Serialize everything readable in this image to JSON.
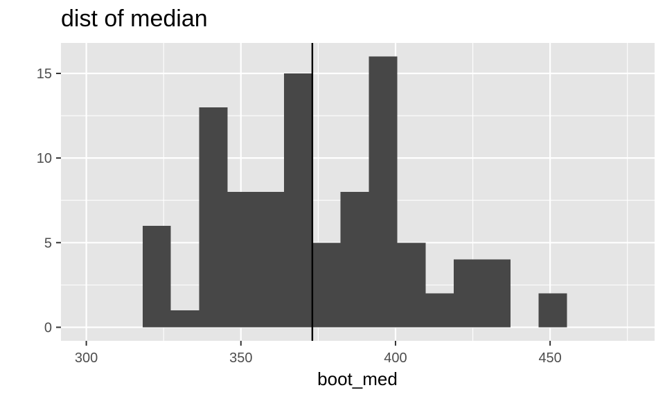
{
  "chart_data": {
    "type": "bar",
    "title": "dist of median",
    "xlabel": "boot_med",
    "ylabel": "",
    "xlim": [
      291.8,
      483.8
    ],
    "ylim": [
      -0.8,
      16.8
    ],
    "x_ticks": [
      300,
      350,
      400,
      450
    ],
    "y_ticks": [
      0,
      5,
      10,
      15
    ],
    "grid": true,
    "bin_width": 9.15,
    "bins": [
      {
        "start": 318.2,
        "end": 327.35,
        "count": 6
      },
      {
        "start": 327.35,
        "end": 336.5,
        "count": 1
      },
      {
        "start": 336.5,
        "end": 345.65,
        "count": 13
      },
      {
        "start": 345.65,
        "end": 354.8,
        "count": 8
      },
      {
        "start": 354.8,
        "end": 363.95,
        "count": 8
      },
      {
        "start": 363.95,
        "end": 373.1,
        "count": 15
      },
      {
        "start": 373.1,
        "end": 382.25,
        "count": 5
      },
      {
        "start": 382.25,
        "end": 391.4,
        "count": 8
      },
      {
        "start": 391.4,
        "end": 400.55,
        "count": 16
      },
      {
        "start": 400.55,
        "end": 409.7,
        "count": 5
      },
      {
        "start": 409.7,
        "end": 418.85,
        "count": 2
      },
      {
        "start": 418.85,
        "end": 428.0,
        "count": 4
      },
      {
        "start": 428.0,
        "end": 437.15,
        "count": 4
      },
      {
        "start": 437.15,
        "end": 446.3,
        "count": 0
      },
      {
        "start": 446.3,
        "end": 455.45,
        "count": 2
      }
    ],
    "vline": 373.1,
    "colors": {
      "panel": "#e5e5e5",
      "grid": "#ffffff",
      "bar": "#474747",
      "vline": "#000000",
      "tick_text": "#4d4d4d"
    }
  }
}
